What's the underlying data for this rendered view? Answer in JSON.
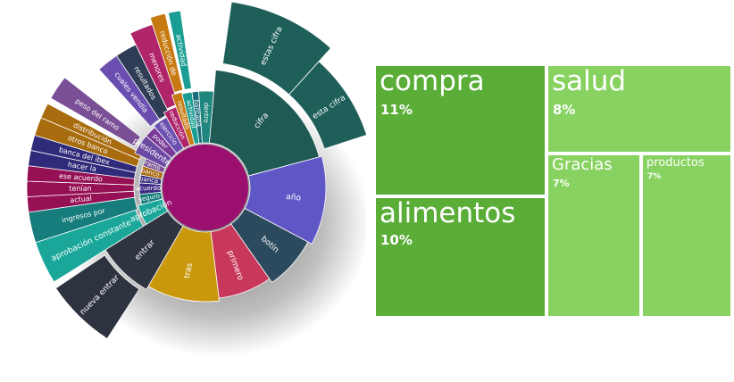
{
  "chart_data": [
    {
      "type": "sunburst",
      "root_color": "#9b0f6e",
      "rings": [
        {
          "ring": "inner",
          "segments": [
            {
              "label": "cifra",
              "color": "#1f5a55"
            },
            {
              "label": "año",
              "color": "#6057c6"
            },
            {
              "label": "botín",
              "color": "#2c4a5e"
            },
            {
              "label": "primero",
              "color": "#c8385b"
            },
            {
              "label": "tras",
              "color": "#c9980d"
            },
            {
              "label": "entrar",
              "color": "#2f3441"
            },
            {
              "label": "aprobación",
              "color": "#1aa79a"
            },
            {
              "label": "seguro",
              "color": "#147b7a"
            },
            {
              "label": "acuerdo",
              "color": "#3e2a85"
            },
            {
              "label": "banca",
              "color": "#3a2d7e"
            },
            {
              "label": "banco",
              "color": "#a7690e"
            },
            {
              "label": "ramo",
              "color": "#7a4f95"
            },
            {
              "label": "presidente",
              "color": "#6b4aa3"
            },
            {
              "label": "poder",
              "color": "#7a3a98"
            },
            {
              "label": "ejercicio",
              "color": "#6a4fb0"
            },
            {
              "label": "reducción",
              "color": "#b0246a"
            },
            {
              "label": "resultado",
              "color": "#c87a12"
            },
            {
              "label": "actividad",
              "color": "#1a9e93"
            },
            {
              "label": "bancaria",
              "color": "#196c7c"
            },
            {
              "label": "dentro",
              "color": "#20877e"
            }
          ]
        },
        {
          "ring": "outer",
          "segments": [
            {
              "label": "estas cifra",
              "color": "#1e5f59"
            },
            {
              "label": "esta cifra",
              "color": "#1e5f59"
            },
            {
              "label": "nueva entrar",
              "color": "#2e3340"
            },
            {
              "label": "aprobación constante",
              "color": "#1aa79a"
            },
            {
              "label": "ingresos por",
              "color": "#167c7c"
            },
            {
              "label": "actual",
              "color": "#951055"
            },
            {
              "label": "tenían",
              "color": "#951055"
            },
            {
              "label": "ese acuerdo",
              "color": "#951055"
            },
            {
              "label": "hacer la",
              "color": "#2f2a7a"
            },
            {
              "label": "banca del ibex",
              "color": "#2f2a7a"
            },
            {
              "label": "otros banco",
              "color": "#a86b0d"
            },
            {
              "label": "distribución",
              "color": "#a86b0d"
            },
            {
              "label": "peso del ramo",
              "color": "#7a4f95"
            },
            {
              "label": "cuales vendía",
              "color": "#6a4fb0"
            },
            {
              "label": "resultados",
              "color": "#2e3d55"
            },
            {
              "label": "menores",
              "color": "#b0246a"
            },
            {
              "label": "reducción de",
              "color": "#c87a12"
            },
            {
              "label": "actividad",
              "color": "#1a9e93"
            }
          ]
        }
      ]
    },
    {
      "type": "treemap",
      "items": [
        {
          "word": "compra",
          "pct": "11%",
          "color": "#5aad37"
        },
        {
          "word": "alimentos",
          "pct": "10%",
          "color": "#5aad37"
        },
        {
          "word": "salud",
          "pct": "8%",
          "color": "#87d260"
        },
        {
          "word": "Gracias",
          "pct": "7%",
          "color": "#87d260"
        },
        {
          "word": "productos",
          "pct": "7%",
          "color": "#87d260"
        }
      ]
    }
  ]
}
